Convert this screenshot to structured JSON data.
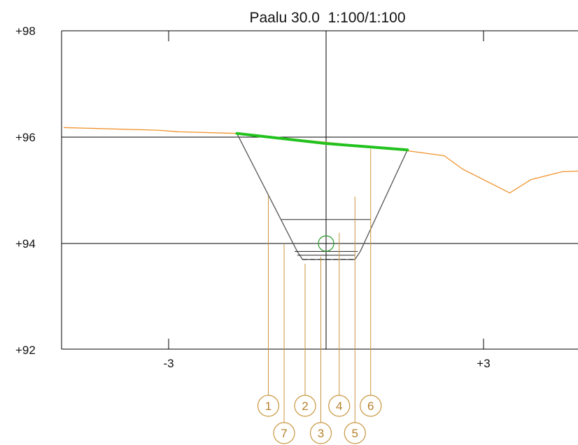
{
  "title": "Paalu 30.0  1:100/1:100",
  "y_axis": {
    "ticks": [
      {
        "value": 98,
        "label": "+98"
      },
      {
        "value": 96,
        "label": "+96"
      },
      {
        "value": 94,
        "label": "+94"
      },
      {
        "value": 92,
        "label": "+92"
      }
    ]
  },
  "x_axis": {
    "ticks": [
      {
        "value": -3,
        "label": "-3"
      },
      {
        "value": 3,
        "label": "+3"
      }
    ]
  },
  "colors": {
    "terrain": "#f0922b",
    "design_surface": "#22c21e",
    "structure": "#555555",
    "marker": "#c8963e",
    "grid": "#000000",
    "center_circle": "#2a9a2a"
  },
  "terrain_profile": [
    [
      -5.0,
      96.18
    ],
    [
      -3.2,
      96.13
    ],
    [
      -2.8,
      96.1
    ],
    [
      -1.7,
      96.07
    ],
    [
      1.25,
      95.78
    ],
    [
      1.65,
      95.73
    ],
    [
      2.25,
      95.65
    ],
    [
      2.6,
      95.4
    ],
    [
      3.5,
      94.95
    ],
    [
      3.9,
      95.2
    ],
    [
      4.5,
      95.35
    ],
    [
      5.0,
      95.37
    ]
  ],
  "design_surface": [
    [
      -1.7,
      96.07
    ],
    [
      0.0,
      95.88
    ],
    [
      1.55,
      95.76
    ]
  ],
  "excavation_outline": [
    [
      -1.7,
      96.07
    ],
    [
      -0.55,
      93.85
    ],
    [
      -0.45,
      93.7
    ],
    [
      0.55,
      93.7
    ],
    [
      0.65,
      93.85
    ],
    [
      1.55,
      95.76
    ]
  ],
  "inner_lines": [
    [
      [
        -0.85,
        94.45
      ],
      [
        0.85,
        94.45
      ]
    ],
    [
      [
        -0.6,
        93.85
      ],
      [
        0.6,
        93.85
      ]
    ],
    [
      [
        -0.55,
        93.78
      ],
      [
        0.55,
        93.78
      ]
    ],
    [
      [
        -0.45,
        93.7
      ],
      [
        0.55,
        93.7
      ]
    ]
  ],
  "center_circle": {
    "x": 0.0,
    "y": 94.0
  },
  "markers": [
    {
      "label": "1",
      "x": -1.1,
      "top": 94.9,
      "row": 1
    },
    {
      "label": "2",
      "x": -0.4,
      "top": 93.62,
      "row": 1
    },
    {
      "label": "4",
      "x": 0.25,
      "top": 94.2,
      "row": 1
    },
    {
      "label": "6",
      "x": 0.85,
      "top": 95.78,
      "row": 1
    },
    {
      "label": "7",
      "x": -0.8,
      "top": 94.0,
      "row": 2
    },
    {
      "label": "3",
      "x": -0.1,
      "top": 93.75,
      "row": 2
    },
    {
      "label": "5",
      "x": 0.55,
      "top": 94.88,
      "row": 2
    }
  ]
}
